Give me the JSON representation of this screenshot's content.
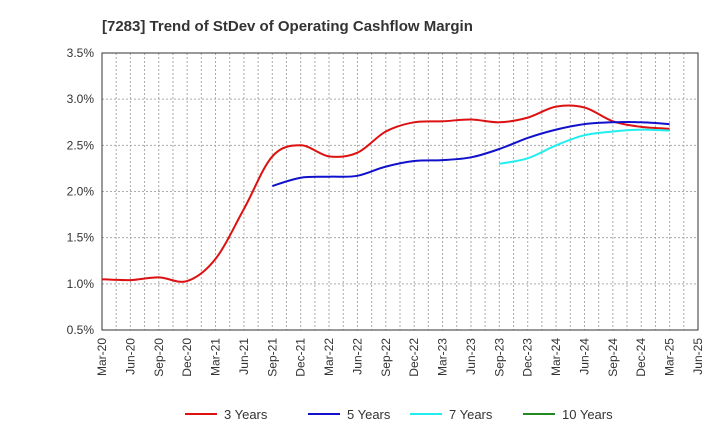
{
  "chart_data": {
    "type": "line",
    "title": "[7283]  Trend of StDev of Operating Cashflow Margin",
    "xlabel": "",
    "ylabel": "",
    "ylim": [
      0.5,
      3.5
    ],
    "yticks": [
      "0.5%",
      "1.0%",
      "1.5%",
      "2.0%",
      "2.5%",
      "3.0%",
      "3.5%"
    ],
    "ytick_values": [
      0.5,
      1.0,
      1.5,
      2.0,
      2.5,
      3.0,
      3.5
    ],
    "x_categories": [
      "Mar-20",
      "Jun-20",
      "Sep-20",
      "Dec-20",
      "Mar-21",
      "Jun-21",
      "Sep-21",
      "Dec-21",
      "Mar-22",
      "Jun-22",
      "Sep-22",
      "Dec-22",
      "Mar-23",
      "Jun-23",
      "Sep-23",
      "Dec-23",
      "Mar-24",
      "Jun-24",
      "Sep-24",
      "Dec-24",
      "Mar-25",
      "Jun-25"
    ],
    "grid": true,
    "legend_position": "bottom",
    "series": [
      {
        "name": "3 Years",
        "color": "#dd1111",
        "start_index": 0,
        "values": [
          1.05,
          1.04,
          1.07,
          1.03,
          1.27,
          1.81,
          2.38,
          2.5,
          2.38,
          2.42,
          2.65,
          2.75,
          2.76,
          2.78,
          2.75,
          2.8,
          2.92,
          2.91,
          2.76,
          2.7,
          2.68
        ]
      },
      {
        "name": "5 Years",
        "color": "#1111cc",
        "start_index": 6,
        "values": [
          2.06,
          2.15,
          2.16,
          2.17,
          2.27,
          2.33,
          2.34,
          2.37,
          2.46,
          2.58,
          2.67,
          2.73,
          2.75,
          2.75,
          2.73
        ]
      },
      {
        "name": "7 Years",
        "color": "#22eeee",
        "start_index": 14,
        "values": [
          2.3,
          2.36,
          2.5,
          2.61,
          2.65,
          2.67,
          2.66
        ]
      },
      {
        "name": "10 Years",
        "color": "#228822",
        "start_index": 21,
        "values": []
      }
    ]
  }
}
